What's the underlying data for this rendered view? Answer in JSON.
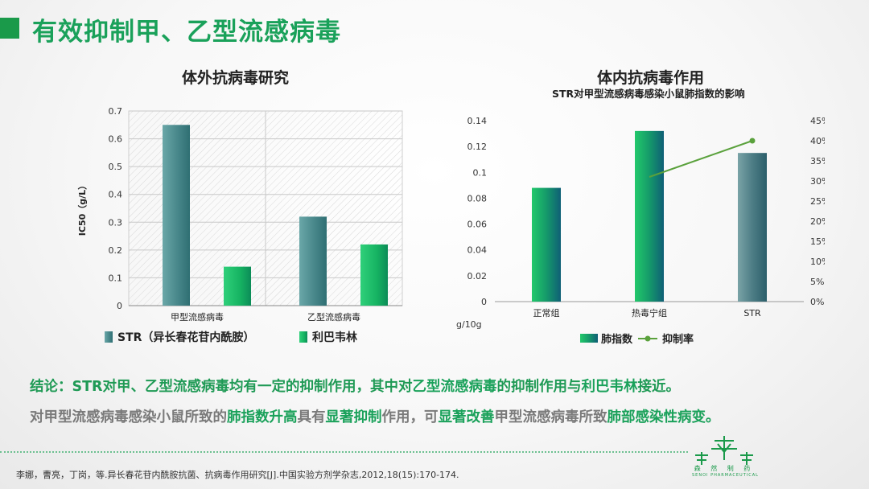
{
  "header": {
    "title": "有效抑制甲、乙型流感病毒"
  },
  "colors": {
    "accent": "#1aa15a",
    "str_bar": "#4f8e91",
    "ribavirin_bar": "#1fbf6a",
    "line": "#5aa13c"
  },
  "left_chart": {
    "title": "体外抗病毒研究"
  },
  "right_chart": {
    "title": "体内抗病毒作用",
    "subtitle": "STR对甲型流感病毒感染小鼠肺指数的影响",
    "unit": "g/10g"
  },
  "chart_data": [
    {
      "type": "bar",
      "title": "体外抗病毒研究",
      "categories": [
        "甲型流感病毒",
        "乙型流感病毒"
      ],
      "series": [
        {
          "name": "STR（异长春花苷内酰胺）",
          "values": [
            0.65,
            0.32
          ]
        },
        {
          "name": "利巴韦林",
          "values": [
            0.14,
            0.22
          ]
        }
      ],
      "ylabel": "IC50（g/L）",
      "ylim": [
        0,
        0.7
      ],
      "yticks": [
        "0",
        "0.1",
        "0.2",
        "0.3",
        "0.4",
        "0.5",
        "0.6",
        "0.7"
      ],
      "grid": true,
      "legend": "bottom"
    },
    {
      "type": "bar",
      "title": "体内抗病毒作用",
      "subtitle": "STR对甲型流感病毒感染小鼠肺指数的影响",
      "categories": [
        "正常组",
        "热毒宁组",
        "STR"
      ],
      "series": [
        {
          "name": "肺指数",
          "values": [
            0.088,
            0.132,
            0.115
          ],
          "axis": "left"
        },
        {
          "name": "抑制率",
          "values": [
            null,
            0.31,
            0.4
          ],
          "axis": "right",
          "type": "line"
        }
      ],
      "ylim": [
        0,
        0.14
      ],
      "yticks": [
        "0",
        "0.02",
        "0.04",
        "0.06",
        "0.08",
        "0.1",
        "0.12",
        "0.14"
      ],
      "y2lim": [
        0,
        0.45
      ],
      "y2ticks": [
        "0%",
        "5%",
        "10%",
        "15%",
        "20%",
        "25%",
        "30%",
        "35%",
        "40%",
        "45%"
      ],
      "ylabel": "g/10g",
      "legend": "bottom"
    }
  ],
  "conclusion": {
    "line1": [
      {
        "t": "结论：STR对甲、乙型流感病毒均有一定的抑制作用，其中对",
        "h": false
      },
      {
        "t": "乙型流感病毒",
        "h": true
      },
      {
        "t": "的抑制作用与",
        "h": false
      },
      {
        "t": "利巴韦林",
        "h": true
      },
      {
        "t": "接近。",
        "h": false
      }
    ],
    "line2": [
      {
        "t": "对甲型流感病毒感染小鼠所致的",
        "h": false
      },
      {
        "t": "肺指数升高",
        "h": true
      },
      {
        "t": "具有",
        "h": false
      },
      {
        "t": "显著抑制",
        "h": true
      },
      {
        "t": "作用，可",
        "h": false
      },
      {
        "t": "显著改善",
        "h": true
      },
      {
        "t": "甲型流感病毒所致",
        "h": false
      },
      {
        "t": "肺部感染性病变。",
        "h": true
      }
    ]
  },
  "reference": "李娜，曹亮，丁岗，等.异长春花苷内酰胺抗菌、抗病毒作用研究[J].中国实验方剂学杂志,2012,18(15):170-174.",
  "brand": {
    "cn": "森 然 制 药",
    "en": "SENOI PHARMACEUTICAL"
  }
}
